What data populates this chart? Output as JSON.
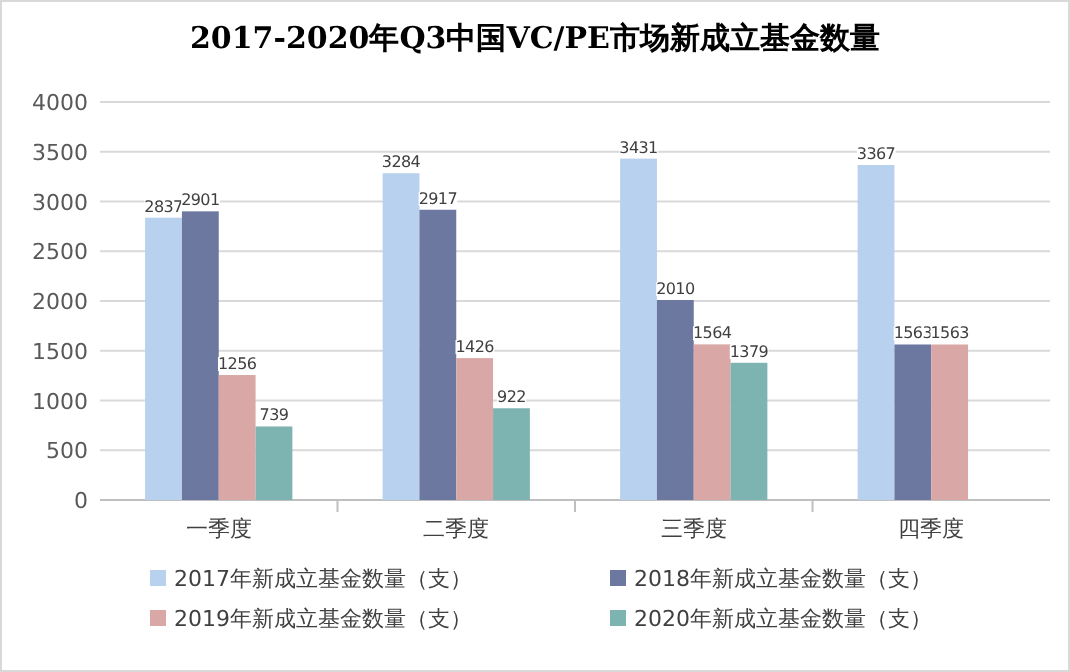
{
  "chart_data": {
    "type": "bar",
    "title": "2017-2020年Q3中国VC/PE市场新成立基金数量",
    "categories": [
      "一季度",
      "二季度",
      "三季度",
      "四季度"
    ],
    "series": [
      {
        "name": "2017年新成立基金数量（支）",
        "color": "#b7d1ee",
        "values": [
          2837,
          3284,
          3431,
          3367
        ]
      },
      {
        "name": "2018年新成立基金数量（支）",
        "color": "#6c789f",
        "values": [
          2901,
          2917,
          2010,
          1563
        ]
      },
      {
        "name": "2019年新成立基金数量（支）",
        "color": "#d9a7a6",
        "values": [
          1256,
          1426,
          1564,
          1563
        ]
      },
      {
        "name": "2020年新成立基金数量（支）",
        "color": "#7db3b0",
        "values": [
          739,
          922,
          1379,
          null
        ]
      }
    ],
    "ylim": [
      0,
      4000
    ],
    "yticks": [
      0,
      500,
      1000,
      1500,
      2000,
      2500,
      3000,
      3500,
      4000
    ],
    "grid": "y",
    "legend": "bottom",
    "data_labels": true
  }
}
